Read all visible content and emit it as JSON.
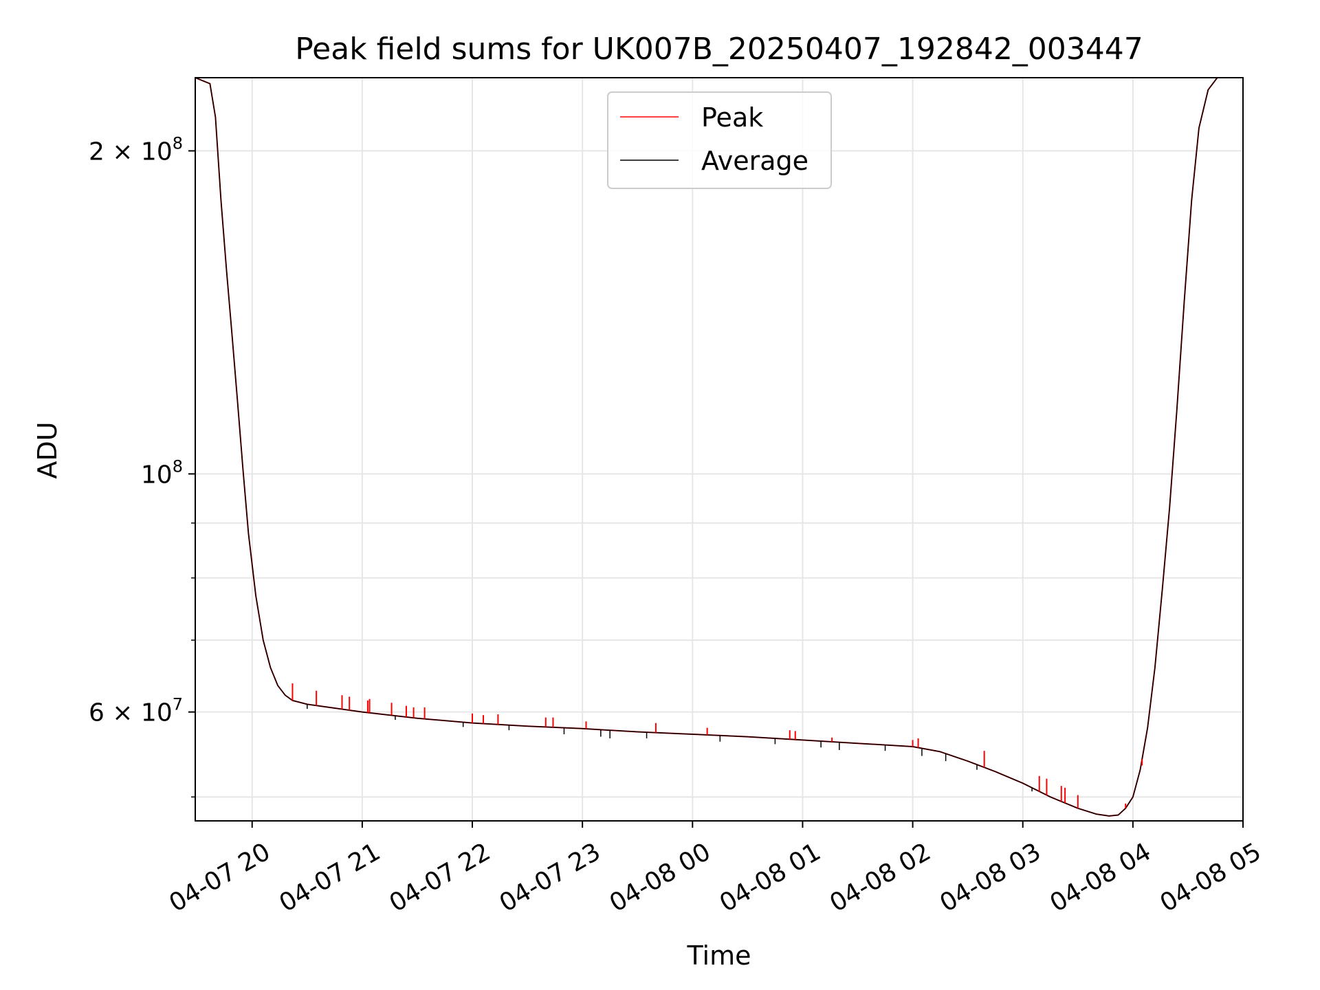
{
  "chart_data": {
    "type": "line",
    "title": "Peak field sums for UK007B_20250407_192842_003447",
    "xlabel": "Time",
    "ylabel": "ADU",
    "yscale": "log",
    "ylim": [
      47500000,
      234000000
    ],
    "xlim": [
      "2025-04-07T19:29",
      "2025-04-08T05:00"
    ],
    "grid": true,
    "legend_position": "upper center",
    "x_ticks": [
      {
        "value": "2025-04-07T20:00",
        "label": "04-07 20"
      },
      {
        "value": "2025-04-07T21:00",
        "label": "04-07 21"
      },
      {
        "value": "2025-04-07T22:00",
        "label": "04-07 22"
      },
      {
        "value": "2025-04-07T23:00",
        "label": "04-07 23"
      },
      {
        "value": "2025-04-08T00:00",
        "label": "04-08 00"
      },
      {
        "value": "2025-04-08T01:00",
        "label": "04-08 01"
      },
      {
        "value": "2025-04-08T02:00",
        "label": "04-08 02"
      },
      {
        "value": "2025-04-08T03:00",
        "label": "04-08 03"
      },
      {
        "value": "2025-04-08T04:00",
        "label": "04-08 04"
      },
      {
        "value": "2025-04-08T05:00",
        "label": "04-08 05"
      }
    ],
    "y_ticks": [
      {
        "value": 200000000,
        "mantissa": "2",
        "times": "×",
        "base": "10",
        "exponent": "8"
      },
      {
        "value": 100000000,
        "mantissa": "",
        "times": "",
        "base": "10",
        "exponent": "8"
      },
      {
        "value": 60000000,
        "mantissa": "6",
        "times": "×",
        "base": "10",
        "exponent": "7"
      }
    ],
    "y_minor_ticks": [
      50000000,
      70000000,
      80000000,
      90000000
    ],
    "series": [
      {
        "name": "Peak",
        "color": "#ff0000",
        "x": [
          "2025-04-07T19:29",
          "2025-04-07T19:37",
          "2025-04-07T19:40",
          "2025-04-07T19:43",
          "2025-04-07T19:46",
          "2025-04-07T19:49",
          "2025-04-07T19:52",
          "2025-04-07T19:55",
          "2025-04-07T19:58",
          "2025-04-07T20:02",
          "2025-04-07T20:06",
          "2025-04-07T20:10",
          "2025-04-07T20:14",
          "2025-04-07T20:18",
          "2025-04-07T20:22",
          "2025-04-07T20:30",
          "2025-04-07T20:45",
          "2025-04-07T21:00",
          "2025-04-07T21:30",
          "2025-04-07T22:00",
          "2025-04-07T22:30",
          "2025-04-07T23:00",
          "2025-04-07T23:30",
          "2025-04-08T00:00",
          "2025-04-08T00:30",
          "2025-04-08T01:00",
          "2025-04-08T01:30",
          "2025-04-08T02:00",
          "2025-04-08T02:15",
          "2025-04-08T02:30",
          "2025-04-08T02:45",
          "2025-04-08T03:00",
          "2025-04-08T03:15",
          "2025-04-08T03:30",
          "2025-04-08T03:40",
          "2025-04-08T03:47",
          "2025-04-08T03:52",
          "2025-04-08T03:56",
          "2025-04-08T04:00",
          "2025-04-08T04:04",
          "2025-04-08T04:08",
          "2025-04-08T04:12",
          "2025-04-08T04:16",
          "2025-04-08T04:20",
          "2025-04-08T04:24",
          "2025-04-08T04:28",
          "2025-04-08T04:32",
          "2025-04-08T04:36",
          "2025-04-08T04:41",
          "2025-04-08T04:46",
          "2025-04-08T05:00"
        ],
        "values": [
          234000000,
          231000000,
          215000000,
          180000000,
          155000000,
          135000000,
          117000000,
          101000000,
          88000000,
          77000000,
          70000000,
          66000000,
          63500000,
          62200000,
          61500000,
          61000000,
          60500000,
          60000000,
          59200000,
          58600000,
          58200000,
          57900000,
          57500000,
          57200000,
          56900000,
          56500000,
          56100000,
          55700000,
          55100000,
          54000000,
          52800000,
          51500000,
          50000000,
          48800000,
          48200000,
          48000000,
          48100000,
          48800000,
          50000000,
          53000000,
          58000000,
          66000000,
          78000000,
          93000000,
          115000000,
          145000000,
          180000000,
          210000000,
          228000000,
          234000000,
          234000000
        ]
      },
      {
        "name": "Average",
        "color": "#000000",
        "x": [
          "2025-04-07T19:29",
          "2025-04-07T19:37",
          "2025-04-07T19:40",
          "2025-04-07T19:43",
          "2025-04-07T19:46",
          "2025-04-07T19:49",
          "2025-04-07T19:52",
          "2025-04-07T19:55",
          "2025-04-07T19:58",
          "2025-04-07T20:02",
          "2025-04-07T20:06",
          "2025-04-07T20:10",
          "2025-04-07T20:14",
          "2025-04-07T20:18",
          "2025-04-07T20:22",
          "2025-04-07T20:30",
          "2025-04-07T20:45",
          "2025-04-07T21:00",
          "2025-04-07T21:30",
          "2025-04-07T22:00",
          "2025-04-07T22:30",
          "2025-04-07T23:00",
          "2025-04-07T23:30",
          "2025-04-08T00:00",
          "2025-04-08T00:30",
          "2025-04-08T01:00",
          "2025-04-08T01:30",
          "2025-04-08T02:00",
          "2025-04-08T02:15",
          "2025-04-08T02:30",
          "2025-04-08T02:45",
          "2025-04-08T03:00",
          "2025-04-08T03:15",
          "2025-04-08T03:30",
          "2025-04-08T03:40",
          "2025-04-08T03:47",
          "2025-04-08T03:52",
          "2025-04-08T03:56",
          "2025-04-08T04:00",
          "2025-04-08T04:04",
          "2025-04-08T04:08",
          "2025-04-08T04:12",
          "2025-04-08T04:16",
          "2025-04-08T04:20",
          "2025-04-08T04:24",
          "2025-04-08T04:28",
          "2025-04-08T04:32",
          "2025-04-08T04:36",
          "2025-04-08T04:41",
          "2025-04-08T04:46",
          "2025-04-08T05:00"
        ],
        "values": [
          234000000,
          231000000,
          215000000,
          180000000,
          155000000,
          135000000,
          117000000,
          101000000,
          88000000,
          77000000,
          70000000,
          66000000,
          63500000,
          62200000,
          61500000,
          61000000,
          60500000,
          60000000,
          59200000,
          58600000,
          58200000,
          57900000,
          57500000,
          57200000,
          56900000,
          56500000,
          56100000,
          55700000,
          55100000,
          54000000,
          52800000,
          51500000,
          50000000,
          48800000,
          48200000,
          48000000,
          48100000,
          48800000,
          50000000,
          53000000,
          58000000,
          66000000,
          78000000,
          93000000,
          115000000,
          145000000,
          180000000,
          210000000,
          228000000,
          234000000,
          234000000
        ]
      }
    ],
    "peak_spikes": {
      "x": [
        "2025-04-07T20:22",
        "2025-04-07T20:35",
        "2025-04-07T20:49",
        "2025-04-07T20:53",
        "2025-04-07T21:03",
        "2025-04-07T21:04",
        "2025-04-07T21:16",
        "2025-04-07T21:24",
        "2025-04-07T21:28",
        "2025-04-07T21:34",
        "2025-04-07T22:00",
        "2025-04-07T22:06",
        "2025-04-07T22:14",
        "2025-04-07T22:40",
        "2025-04-07T22:44",
        "2025-04-07T23:02",
        "2025-04-07T23:40",
        "2025-04-08T00:08",
        "2025-04-08T00:53",
        "2025-04-08T00:56",
        "2025-04-08T01:16",
        "2025-04-08T02:00",
        "2025-04-08T02:03",
        "2025-04-08T02:39",
        "2025-04-08T03:09",
        "2025-04-08T03:13",
        "2025-04-08T03:21",
        "2025-04-08T03:23",
        "2025-04-08T03:30",
        "2025-04-08T03:56",
        "2025-04-08T04:05"
      ],
      "values": [
        63800000,
        62800000,
        62200000,
        62000000,
        61500000,
        61700000,
        61200000,
        60800000,
        60600000,
        60600000,
        59800000,
        59600000,
        59700000,
        59300000,
        59300000,
        58800000,
        58600000,
        58000000,
        57700000,
        57600000,
        56800000,
        56500000,
        56700000,
        55200000,
        52300000,
        52000000,
        51200000,
        51000000,
        50200000,
        49300000,
        53500000
      ]
    },
    "avg_dips": {
      "x": [
        "2025-04-07T20:30",
        "2025-04-07T21:18",
        "2025-04-07T21:55",
        "2025-04-07T22:20",
        "2025-04-07T22:50",
        "2025-04-07T23:10",
        "2025-04-07T23:15",
        "2025-04-07T23:35",
        "2025-04-08T00:15",
        "2025-04-08T00:45",
        "2025-04-08T01:10",
        "2025-04-08T01:20",
        "2025-04-08T01:45",
        "2025-04-08T02:05",
        "2025-04-08T02:18",
        "2025-04-08T02:35",
        "2025-04-08T03:05",
        "2025-04-08T03:12"
      ],
      "values": [
        60400000,
        59000000,
        58100000,
        57700000,
        57200000,
        56900000,
        56700000,
        56700000,
        56300000,
        56000000,
        55600000,
        55300000,
        55200000,
        54600000,
        54000000,
        53000000,
        50600000,
        50300000
      ]
    },
    "legend": [
      {
        "name": "Peak",
        "color": "#ff0000"
      },
      {
        "name": "Average",
        "color": "#000000"
      }
    ]
  }
}
